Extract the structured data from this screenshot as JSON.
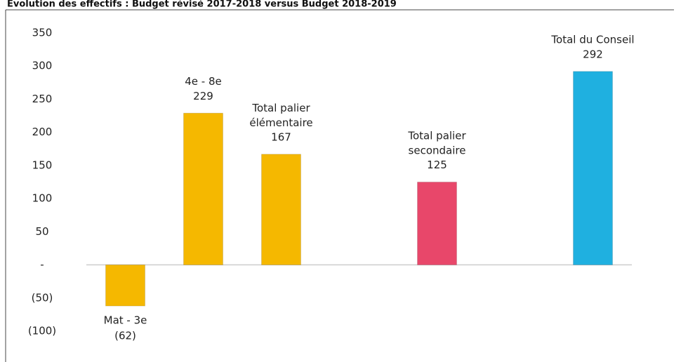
{
  "chart_data": {
    "type": "bar",
    "title": "Évolution des effectifs : Budget révisé 2017-2018 versus Budget 2018-2019",
    "categories": [
      "Mat - 3e",
      "4e - 8e",
      "Total palier élémentaire",
      null,
      "Total palier secondaire",
      null,
      "Total du Conseil"
    ],
    "values": [
      -62,
      229,
      167,
      null,
      125,
      null,
      292
    ],
    "value_labels": [
      "(62)",
      "229",
      "167",
      null,
      "125",
      null,
      "292"
    ],
    "colors": [
      "#f5b800",
      "#f5b800",
      "#f5b800",
      null,
      "#e8476a",
      null,
      "#1fb0e0"
    ],
    "ylim": [
      -100,
      350
    ],
    "yticks": [
      {
        "value": -100,
        "label": "(100)"
      },
      {
        "value": -50,
        "label": "(50)"
      },
      {
        "value": 0,
        "label": "-"
      },
      50,
      100,
      150,
      200,
      250,
      300,
      350
    ]
  }
}
